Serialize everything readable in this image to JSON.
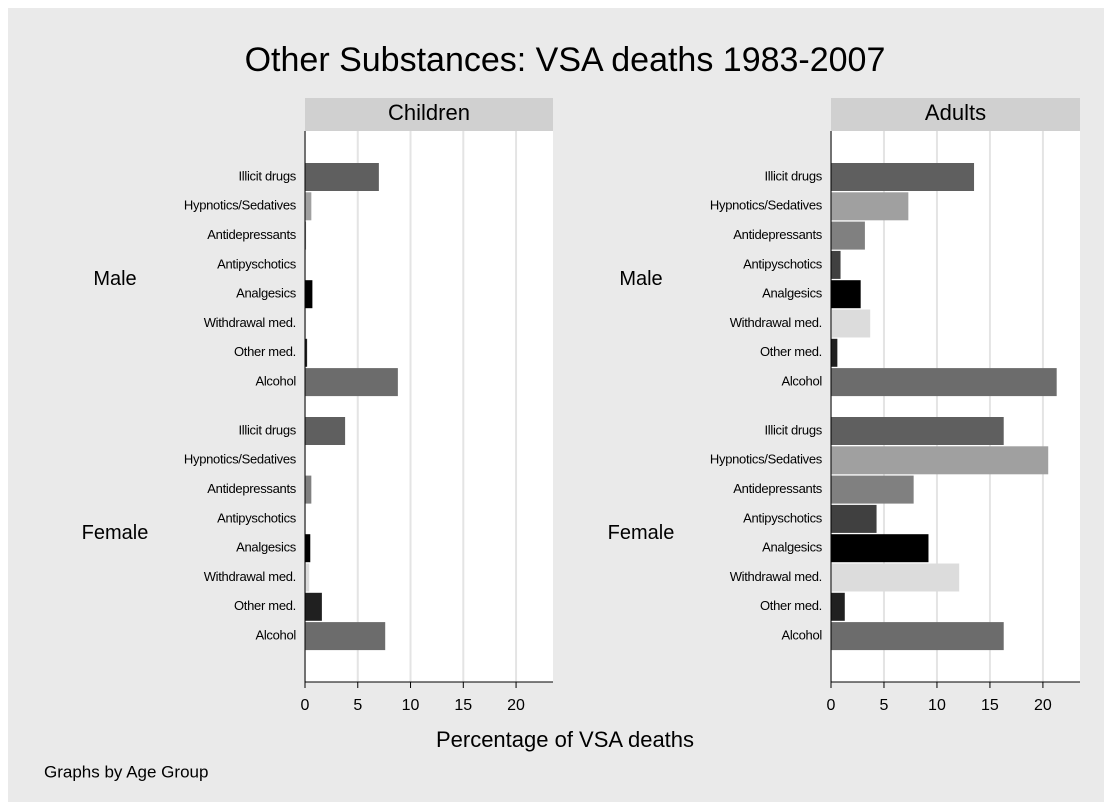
{
  "title": "Other Substances: VSA deaths 1983-2007",
  "x_label": "Percentage of VSA deaths",
  "note": "Graphs by Age Group",
  "chart_data": [
    {
      "type": "bar",
      "title": "Children",
      "categories": [
        "Illicit drugs",
        "Hypnotics/Sedatives",
        "Antidepressants",
        "Antipyschotics",
        "Analgesics",
        "Withdrawal med.",
        "Other med.",
        "Alcohol"
      ],
      "colors": [
        "#5f5f5f",
        "#a0a0a0",
        "#808080",
        "#404040",
        "#000000",
        "#dcdcdc",
        "#202020",
        "#6c6c6c"
      ],
      "series": [
        {
          "name": "Male",
          "values": [
            7.0,
            0.6,
            0.1,
            0,
            0.7,
            0.1,
            0.2,
            8.8
          ]
        },
        {
          "name": "Female",
          "values": [
            3.8,
            0,
            0.6,
            0,
            0.5,
            0.4,
            1.6,
            7.6
          ]
        }
      ],
      "xlim": [
        0,
        23.5
      ],
      "xticks": [
        0,
        5,
        10,
        15,
        20
      ],
      "grid": true
    },
    {
      "type": "bar",
      "title": "Adults",
      "categories": [
        "Illicit drugs",
        "Hypnotics/Sedatives",
        "Antidepressants",
        "Antipyschotics",
        "Analgesics",
        "Withdrawal med.",
        "Other med.",
        "Alcohol"
      ],
      "colors": [
        "#5f5f5f",
        "#a0a0a0",
        "#808080",
        "#404040",
        "#000000",
        "#dcdcdc",
        "#202020",
        "#6c6c6c"
      ],
      "series": [
        {
          "name": "Male",
          "values": [
            13.5,
            7.3,
            3.2,
            0.9,
            2.8,
            3.7,
            0.6,
            21.3
          ]
        },
        {
          "name": "Female",
          "values": [
            16.3,
            20.5,
            7.8,
            4.3,
            9.2,
            12.1,
            1.3,
            16.3
          ]
        }
      ],
      "xlim": [
        0,
        23.5
      ],
      "xticks": [
        0,
        5,
        10,
        15,
        20
      ],
      "grid": true
    }
  ]
}
